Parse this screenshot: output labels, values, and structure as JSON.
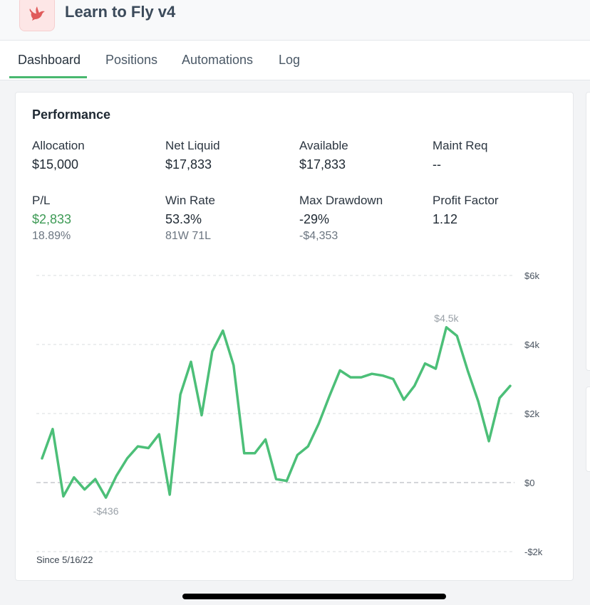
{
  "app": {
    "title": "Learn to Fly v4",
    "logo_icon": "bird-icon",
    "accent": "#48b86f",
    "brand": "#e05b5b"
  },
  "tabs": [
    {
      "label": "Dashboard",
      "active": true
    },
    {
      "label": "Positions",
      "active": false
    },
    {
      "label": "Automations",
      "active": false
    },
    {
      "label": "Log",
      "active": false
    }
  ],
  "performance": {
    "title": "Performance",
    "stats": [
      {
        "label": "Allocation",
        "value": "$15,000"
      },
      {
        "label": "Net Liquid",
        "value": "$17,833"
      },
      {
        "label": "Available",
        "value": "$17,833"
      },
      {
        "label": "Maint Req",
        "value": "--"
      },
      {
        "label": "P/L",
        "value": "$2,833",
        "sub": "18.89%",
        "value_color": "#3d9a55"
      },
      {
        "label": "Win Rate",
        "value": "53.3%",
        "sub": "81W 71L"
      },
      {
        "label": "Max Drawdown",
        "value": "-29%",
        "sub": "-$4,353"
      },
      {
        "label": "Profit Factor",
        "value": "1.12"
      }
    ]
  },
  "chart_data": {
    "type": "line",
    "since_label": "Since 5/16/22",
    "ylim": [
      -2000,
      6000
    ],
    "yticks": [
      {
        "value": 6000,
        "label": "$6k"
      },
      {
        "value": 4000,
        "label": "$4k"
      },
      {
        "value": 2000,
        "label": "$2k"
      },
      {
        "value": 0,
        "label": "$0"
      },
      {
        "value": -2000,
        "label": "-$2k"
      }
    ],
    "color": "#4cbf78",
    "series": [
      {
        "values": [
          700,
          1550,
          -400,
          150,
          -200,
          100,
          -436,
          200,
          700,
          1050,
          1000,
          1400,
          -350,
          2550,
          3500,
          1950,
          3800,
          4400,
          3400,
          850,
          850,
          1250,
          100,
          50,
          800,
          1050,
          1700,
          2500,
          3250,
          3050,
          3050,
          3150,
          3100,
          3000,
          2400,
          2800,
          3450,
          3300,
          4500,
          4250,
          3250,
          2350,
          1200,
          2450,
          2800
        ]
      }
    ],
    "annotations": [
      {
        "label": "$4.5k",
        "point_index": 38
      },
      {
        "label": "-$436",
        "point_index": 6
      }
    ]
  }
}
